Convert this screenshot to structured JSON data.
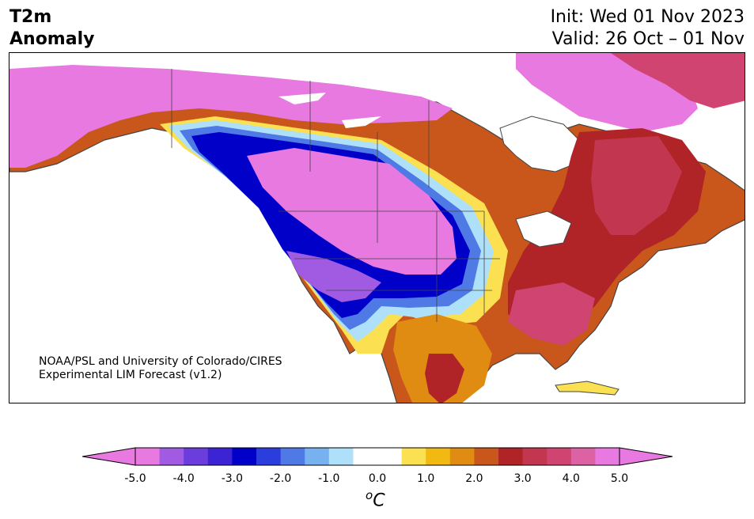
{
  "title": {
    "line1": "T2m",
    "line2": "Anomaly"
  },
  "header_right": {
    "init": "Init: Wed 01 Nov 2023",
    "valid": "Valid: 26 Oct – 01 Nov"
  },
  "credit": {
    "line1": "NOAA/PSL and University of Colorado/CIRES",
    "line2": "Experimental LIM Forecast (v1.2)"
  },
  "colorbar": {
    "ticks": [
      "-5.0",
      "-4.0",
      "-3.0",
      "-2.0",
      "-1.0",
      "0.0",
      "1.0",
      "2.0",
      "3.0",
      "4.0",
      "5.0"
    ],
    "unit": "oC",
    "min": -5.0,
    "max": 5.0,
    "colors": [
      "#e879e0",
      "#a15be3",
      "#6a3ddc",
      "#3c23d3",
      "#0000c8",
      "#2b3ddd",
      "#4f79e5",
      "#78b1f0",
      "#aee0fa",
      "#ffffff",
      "#ffffff",
      "#fbe052",
      "#f1b912",
      "#e08b12",
      "#c9561a",
      "#b02427",
      "#c33650",
      "#cf4470",
      "#dc62a4",
      "#e879e0"
    ],
    "extend": "both"
  }
}
